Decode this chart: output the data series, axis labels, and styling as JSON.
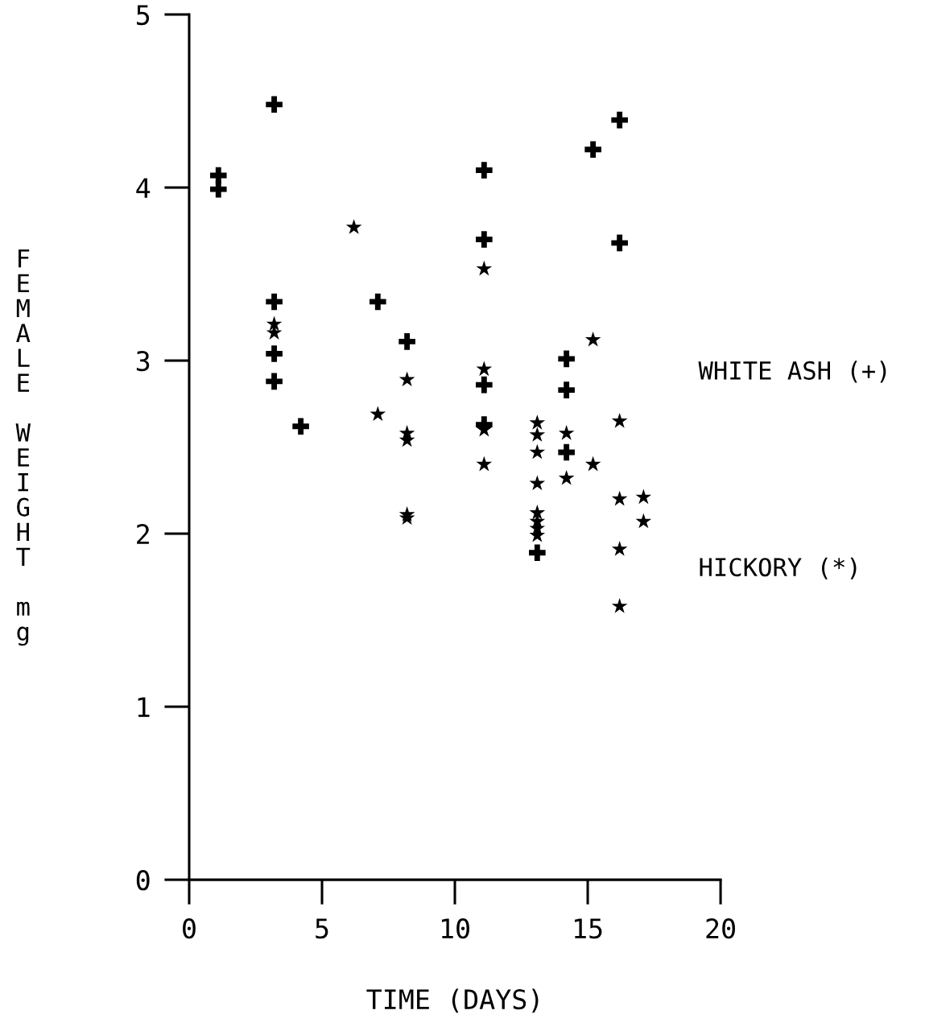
{
  "chart_data": {
    "type": "scatter",
    "xlabel": "TIME (DAYS)",
    "ylabel": "FEMALE WEIGHT mg",
    "xlim": [
      0,
      20
    ],
    "xticks": [
      0,
      5,
      10,
      15,
      20
    ],
    "ylim": [
      0,
      5
    ],
    "yticks": [
      0,
      1,
      2,
      3,
      4,
      5
    ],
    "grid": false,
    "legend": "right",
    "series": [
      {
        "name": "WHITE ASH (+)",
        "color": "#000000",
        "marker": "cross",
        "x": [
          1.1,
          1.1,
          3.2,
          3.2,
          3.2,
          3.2,
          4.2,
          7.1,
          8.2,
          11.1,
          11.1,
          11.1,
          11.1,
          13.1,
          14.2,
          14.2,
          14.2,
          15.2,
          16.2,
          16.2
        ],
        "values": [
          4.07,
          3.99,
          4.48,
          3.34,
          3.04,
          2.88,
          2.62,
          3.34,
          3.11,
          4.1,
          3.7,
          2.86,
          2.63,
          1.89,
          3.01,
          2.83,
          2.47,
          4.22,
          4.39,
          3.68
        ]
      },
      {
        "name": "HICKORY (*)",
        "color": "#000000",
        "marker": "star",
        "x": [
          3.2,
          3.2,
          6.2,
          7.1,
          8.2,
          8.2,
          8.2,
          8.2,
          8.2,
          11.1,
          11.1,
          11.1,
          11.1,
          13.1,
          13.1,
          13.1,
          13.1,
          13.1,
          13.1,
          13.1,
          13.1,
          14.2,
          14.2,
          15.2,
          15.2,
          16.2,
          16.2,
          16.2,
          16.2,
          17.1,
          17.1
        ],
        "values": [
          3.21,
          3.16,
          3.77,
          2.69,
          2.89,
          2.58,
          2.54,
          2.11,
          2.09,
          3.53,
          2.95,
          2.6,
          2.4,
          2.64,
          2.57,
          2.47,
          2.29,
          2.12,
          2.07,
          2.03,
          1.99,
          2.58,
          2.32,
          3.12,
          2.4,
          2.65,
          2.2,
          1.91,
          1.58,
          2.21,
          2.07
        ]
      }
    ]
  }
}
